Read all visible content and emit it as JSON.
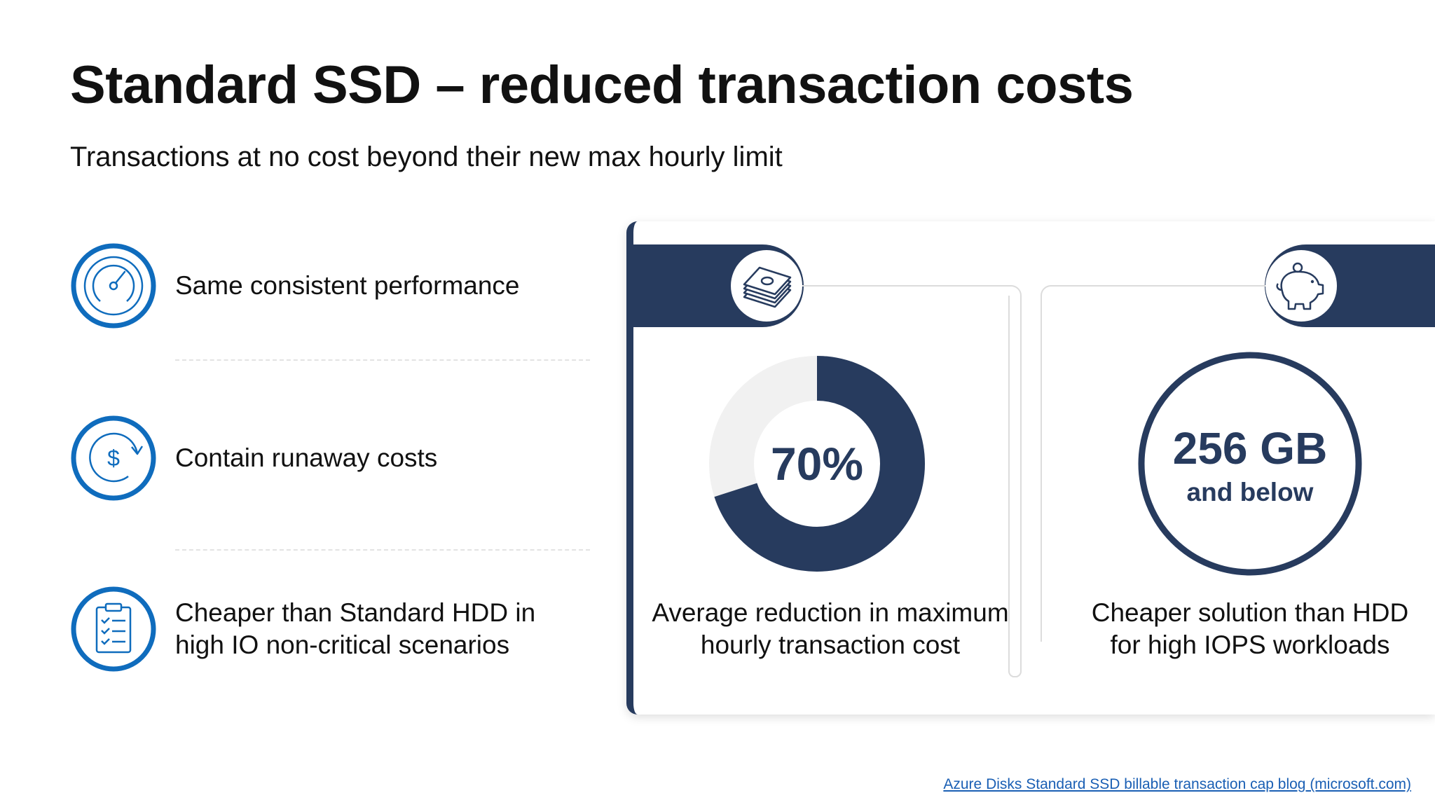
{
  "slide": {
    "title": "Standard SSD – reduced transaction costs",
    "subtitle": "Transactions at no cost beyond their new max hourly limit"
  },
  "features": [
    {
      "icon": "gauge-icon",
      "label": "Same consistent performance"
    },
    {
      "icon": "dollar-cycle-icon",
      "label": "Contain runaway costs"
    },
    {
      "icon": "checklist-icon",
      "label_line1": "Cheaper than Standard HDD in",
      "label_line2": "high IO non-critical scenarios"
    }
  ],
  "stats": [
    {
      "icon": "money-stack-icon",
      "value": "70%",
      "progress_percent": 70,
      "label_line1": "Average reduction in maximum",
      "label_line2": "hourly transaction cost"
    },
    {
      "icon": "piggy-bank-icon",
      "value": "256 GB",
      "value_sub": "and below",
      "label_line1": "Cheaper solution than HDD",
      "label_line2": "for high IOPS workloads"
    }
  ],
  "footer": {
    "link_text": "Azure Disks Standard SSD billable transaction cap blog (microsoft.com)"
  },
  "colors": {
    "accent_blue": "#0f6cbd",
    "navy": "#273b5e",
    "donut_track": "#f1f1f1"
  }
}
